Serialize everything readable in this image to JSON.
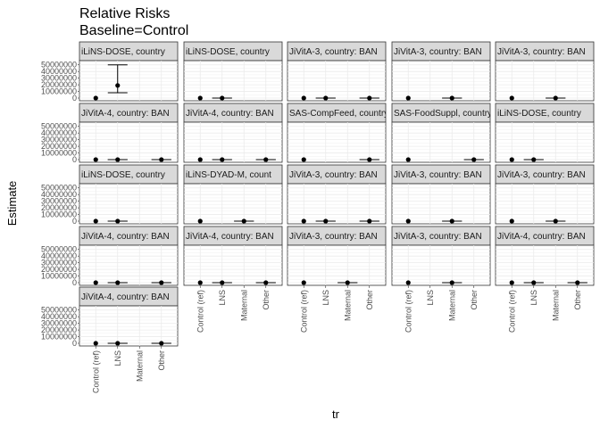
{
  "chart_data": {
    "type": "scatter",
    "title": "Relative Risks",
    "subtitle": "Baseline=Control",
    "xlabel": "tr",
    "ylabel": "Estimate",
    "categories": [
      "Control (ref)",
      "LNS",
      "Maternal",
      "Other"
    ],
    "y_ticks": [
      "0",
      "10000000",
      "20000000",
      "30000000",
      "40000000",
      "50000000"
    ],
    "ylim": [
      0,
      55000000
    ],
    "grid": true,
    "panels": [
      {
        "label": "iLiNS-DOSE, country",
        "points": [
          {
            "cat": "Control (ref)",
            "y": 0
          },
          {
            "cat": "LNS",
            "y": 19000000,
            "lo": 8000000,
            "hi": 50000000
          }
        ]
      },
      {
        "label": "iLiNS-DOSE, country",
        "points": [
          {
            "cat": "Control (ref)",
            "y": 0
          },
          {
            "cat": "LNS",
            "y": 0,
            "lo": 0,
            "hi": 0
          }
        ]
      },
      {
        "label": "JiVitA-3, country: BAN",
        "points": [
          {
            "cat": "Control (ref)",
            "y": 0
          },
          {
            "cat": "LNS",
            "y": 0,
            "lo": 0,
            "hi": 0
          },
          {
            "cat": "Other",
            "y": 0,
            "lo": 0,
            "hi": 0
          }
        ]
      },
      {
        "label": "JiVitA-3, country: BAN",
        "points": [
          {
            "cat": "Control (ref)",
            "y": 0
          },
          {
            "cat": "Maternal",
            "y": 0,
            "lo": 0,
            "hi": 0
          }
        ]
      },
      {
        "label": "JiVitA-3, country: BAN",
        "points": [
          {
            "cat": "Control (ref)",
            "y": 0
          },
          {
            "cat": "Maternal",
            "y": 0,
            "lo": 0,
            "hi": 0
          }
        ]
      },
      {
        "label": "JiVitA-4, country: BAN",
        "points": [
          {
            "cat": "Control (ref)",
            "y": 0
          },
          {
            "cat": "LNS",
            "y": 0,
            "lo": 0,
            "hi": 0
          },
          {
            "cat": "Other",
            "y": 0,
            "lo": 0,
            "hi": 0
          }
        ]
      },
      {
        "label": "JiVitA-4, country: BAN",
        "points": [
          {
            "cat": "Control (ref)",
            "y": 0
          },
          {
            "cat": "LNS",
            "y": 0,
            "lo": 0,
            "hi": 0
          },
          {
            "cat": "Other",
            "y": 0,
            "lo": 0,
            "hi": 0
          }
        ]
      },
      {
        "label": "SAS-CompFeed, country",
        "points": [
          {
            "cat": "Control (ref)",
            "y": 0
          },
          {
            "cat": "Other",
            "y": 0,
            "lo": 0,
            "hi": 0
          }
        ]
      },
      {
        "label": "SAS-FoodSuppl, country",
        "points": [
          {
            "cat": "Control (ref)",
            "y": 0
          },
          {
            "cat": "Other",
            "y": 0,
            "lo": 0,
            "hi": 0
          }
        ]
      },
      {
        "label": "iLiNS-DOSE, country",
        "points": [
          {
            "cat": "Control (ref)",
            "y": 0
          },
          {
            "cat": "LNS",
            "y": 0,
            "lo": 0,
            "hi": 0
          }
        ]
      },
      {
        "label": "iLiNS-DOSE, country",
        "points": [
          {
            "cat": "Control (ref)",
            "y": 0
          },
          {
            "cat": "LNS",
            "y": 0,
            "lo": 0,
            "hi": 0
          }
        ]
      },
      {
        "label": "iLiNS-DYAD-M, count",
        "points": [
          {
            "cat": "Control (ref)",
            "y": 0
          },
          {
            "cat": "Maternal",
            "y": 0,
            "lo": 0,
            "hi": 0
          }
        ]
      },
      {
        "label": "JiVitA-3, country: BAN",
        "points": [
          {
            "cat": "Control (ref)",
            "y": 0
          },
          {
            "cat": "LNS",
            "y": 0,
            "lo": 0,
            "hi": 0
          },
          {
            "cat": "Other",
            "y": 0,
            "lo": 0,
            "hi": 0
          }
        ]
      },
      {
        "label": "JiVitA-3, country: BAN",
        "points": [
          {
            "cat": "Control (ref)",
            "y": 0
          },
          {
            "cat": "Maternal",
            "y": 0,
            "lo": 0,
            "hi": 0
          }
        ]
      },
      {
        "label": "JiVitA-3, country: BAN",
        "points": [
          {
            "cat": "Control (ref)",
            "y": 0
          },
          {
            "cat": "Maternal",
            "y": 0,
            "lo": 0,
            "hi": 0
          }
        ]
      },
      {
        "label": "JiVitA-4, country: BAN",
        "points": [
          {
            "cat": "Control (ref)",
            "y": 0
          },
          {
            "cat": "LNS",
            "y": 0,
            "lo": 0,
            "hi": 0
          },
          {
            "cat": "Other",
            "y": 0,
            "lo": 0,
            "hi": 0
          }
        ]
      },
      {
        "label": "JiVitA-4, country: BAN",
        "points": [
          {
            "cat": "Control (ref)",
            "y": 0
          },
          {
            "cat": "LNS",
            "y": 0,
            "lo": 0,
            "hi": 0
          },
          {
            "cat": "Other",
            "y": 0,
            "lo": 0,
            "hi": 0
          }
        ]
      },
      {
        "label": "JiVitA-3, country: BAN",
        "points": [
          {
            "cat": "Control (ref)",
            "y": 0
          },
          {
            "cat": "Maternal",
            "y": 0,
            "lo": 0,
            "hi": 0
          }
        ]
      },
      {
        "label": "JiVitA-3, country: BAN",
        "points": [
          {
            "cat": "Control (ref)",
            "y": 0
          },
          {
            "cat": "Maternal",
            "y": 0,
            "lo": 0,
            "hi": 0
          }
        ]
      },
      {
        "label": "JiVitA-4, country: BAN",
        "points": [
          {
            "cat": "Control (ref)",
            "y": 0
          },
          {
            "cat": "LNS",
            "y": 0,
            "lo": 0,
            "hi": 0
          },
          {
            "cat": "Other",
            "y": 0,
            "lo": 0,
            "hi": 0
          }
        ]
      },
      {
        "label": "JiVitA-4, country: BAN",
        "points": [
          {
            "cat": "Control (ref)",
            "y": 0
          },
          {
            "cat": "LNS",
            "y": 0,
            "lo": 0,
            "hi": 0
          },
          {
            "cat": "Other",
            "y": 0,
            "lo": 0,
            "hi": 0
          }
        ]
      }
    ]
  }
}
